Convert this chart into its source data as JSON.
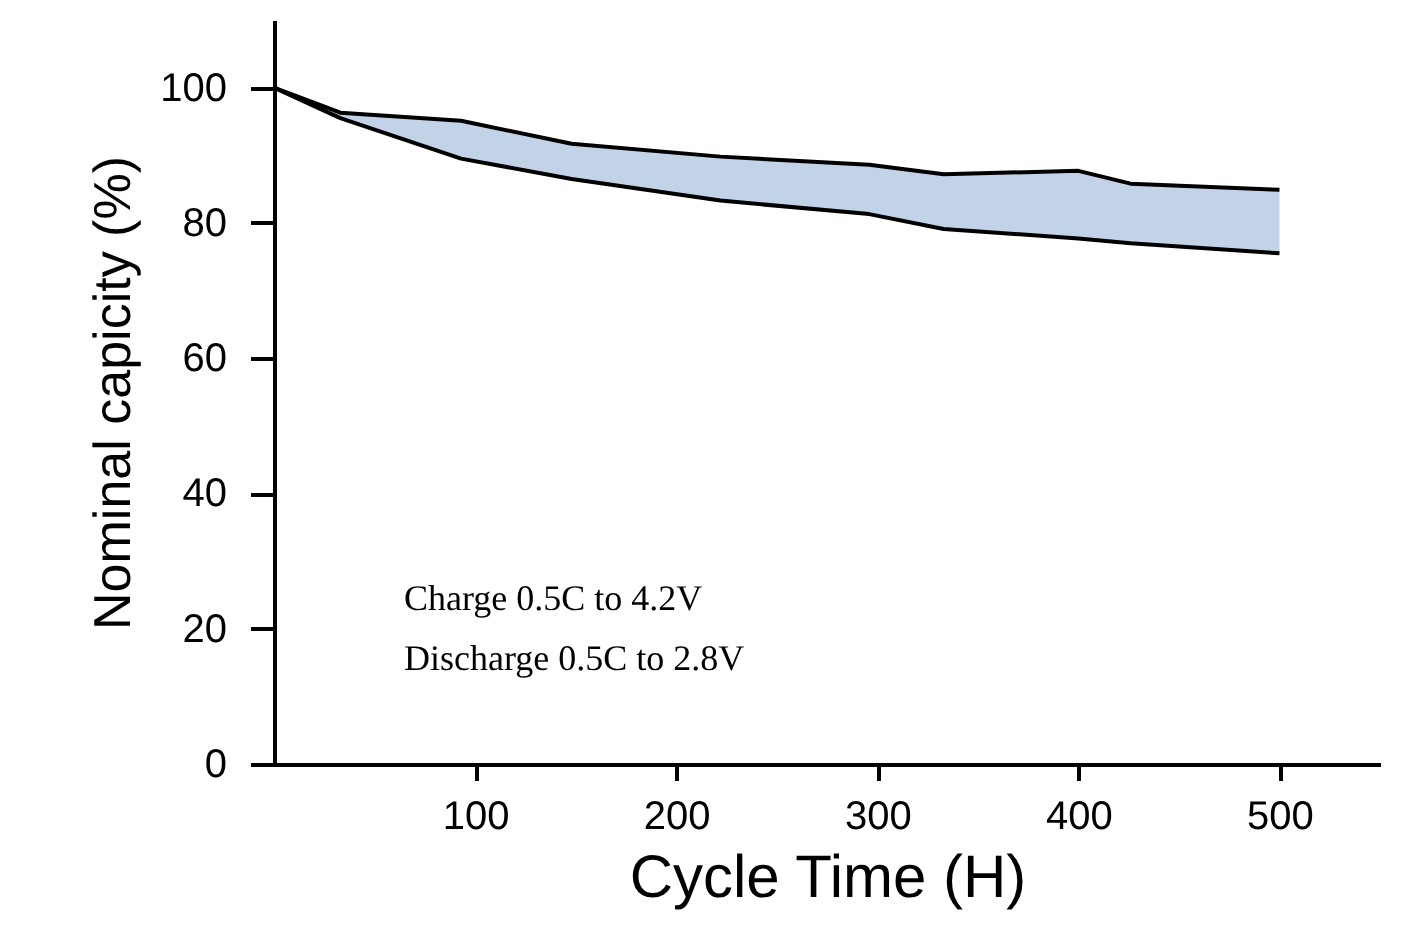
{
  "chart_data": {
    "type": "line",
    "xlabel": "Cycle  Time (H)",
    "ylabel": "Nominal capicity (%)",
    "x": [
      0,
      33,
      93,
      148,
      222,
      296,
      333,
      400,
      426,
      500
    ],
    "series": [
      {
        "color": "#000000",
        "values": [
          100,
          96.3,
          95.1,
          91.7,
          89.8,
          88.6,
          87.2,
          87.7,
          85.8,
          84.9
        ],
        "upper": [
          100,
          96.3,
          95.1,
          91.7,
          89.8,
          88.6,
          87.2,
          87.7,
          85.8,
          84.9
        ],
        "lower": [
          100,
          95.5,
          89.5,
          86.5,
          83.3,
          81.3,
          79.1,
          77.7,
          77,
          75.5
        ]
      },
      {
        "color": "#000000",
        "values": [
          100,
          95.5,
          89.5,
          86.5,
          83.3,
          81.3,
          79.1,
          77.7,
          77,
          75.5
        ]
      }
    ],
    "xlim": [
      0,
      550
    ],
    "ylim": [
      0,
      110
    ],
    "xticks": [
      100,
      200,
      300,
      400,
      500
    ],
    "yticks": [
      0,
      20,
      40,
      60,
      80,
      100
    ],
    "grid": false,
    "marker": "none",
    "line_style": "solid",
    "annotations": [
      "Charge 0.5C to 4.2V",
      "Discharge 0.5C to 2.8V"
    ]
  }
}
